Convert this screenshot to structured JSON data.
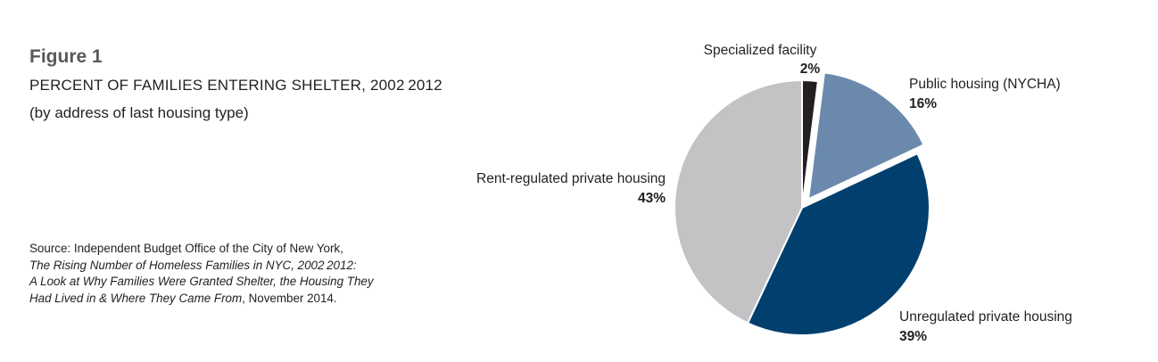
{
  "figure": {
    "label": "Figure 1",
    "title": "PERCENT OF FAMILIES ENTERING SHELTER, 2002 2012",
    "subtitle": "(by address of last housing type)"
  },
  "source": {
    "line1": "Source: Independent Budget Office of the City of New York,",
    "line2": "The Rising Number of Homeless Families in NYC, 2002 2012:",
    "line3": "A Look at Why Families Were Granted Shelter, the Housing They",
    "line4_italic": "Had Lived in & Where They Came From",
    "line4_rest": ", November 2014."
  },
  "chart_data": {
    "type": "pie",
    "title": "PERCENT OF FAMILIES ENTERING SHELTER, 2002 2012",
    "start": "12 o'clock",
    "direction": "clockwise",
    "exploded": [
      "Public housing (NYCHA)"
    ],
    "slices": [
      {
        "label": "Specialized facility",
        "value": 2,
        "value_label": "2%",
        "color": "#231f20"
      },
      {
        "label": "Public housing (NYCHA)",
        "value": 16,
        "value_label": "16%",
        "color": "#6a89ad"
      },
      {
        "label": "Unregulated private housing",
        "value": 39,
        "value_label": "39%",
        "color": "#003f6e"
      },
      {
        "label": "Rent-regulated private housing",
        "value": 43,
        "value_label": "43%",
        "color": "#c3c2c4"
      }
    ]
  }
}
